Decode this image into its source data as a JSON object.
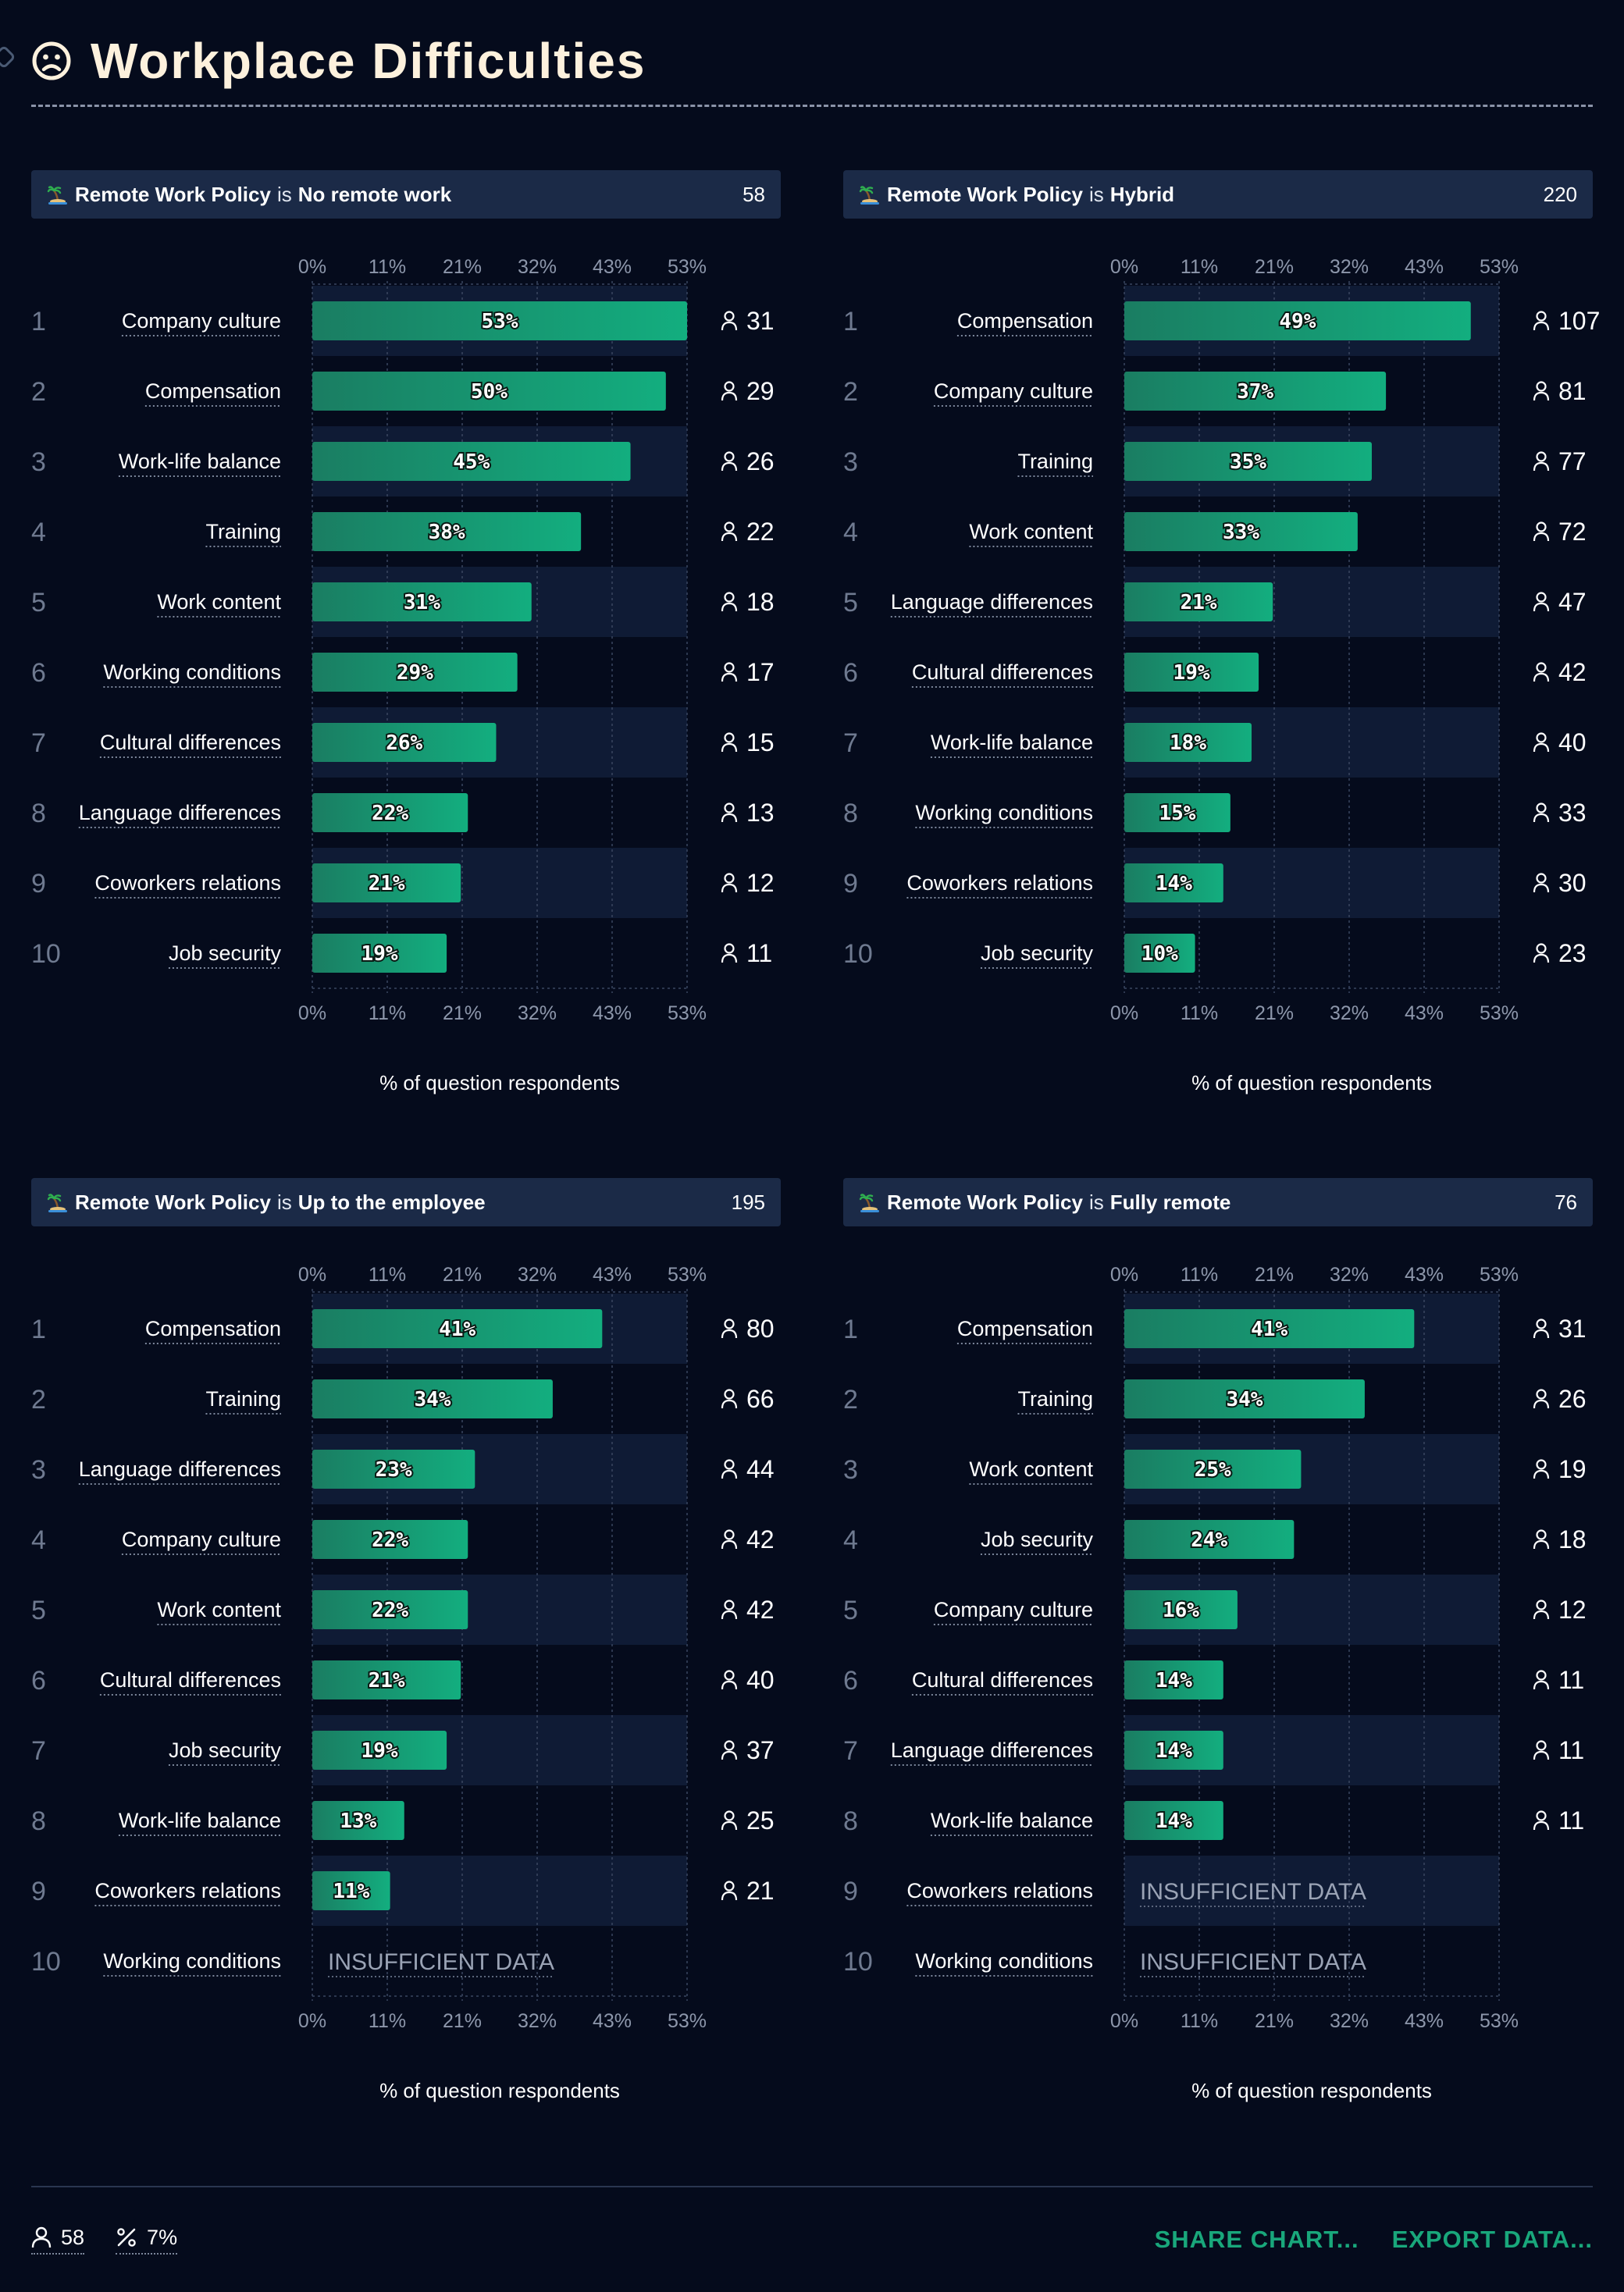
{
  "title": "Workplace Difficulties",
  "colors": {
    "background": "#050b1c",
    "header_bg": "#1b2a47",
    "band_bg": "#0f1b35",
    "bar_start": "#1a7d62",
    "bar_end": "#13ae7f",
    "accent": "#19a77b"
  },
  "axis_ticks": [
    "0%",
    "11%",
    "21%",
    "32%",
    "43%",
    "53%"
  ],
  "axis_label": "% of question respondents",
  "insufficient_label": "INSUFFICIENT DATA",
  "footer": {
    "respondents": "58",
    "percent": "7%",
    "share_label": "SHARE CHART...",
    "export_label": "EXPORT DATA..."
  },
  "chart_data": [
    {
      "type": "bar",
      "orientation": "horizontal",
      "filter_field": "Remote Work Policy",
      "filter_is": "is",
      "filter_value": "No remote work",
      "total": "58",
      "xlim": [
        0,
        53
      ],
      "xlabel": "% of question respondents",
      "rows": [
        {
          "rank": "1",
          "label": "Company culture",
          "value": 53,
          "count": "31"
        },
        {
          "rank": "2",
          "label": "Compensation",
          "value": 50,
          "count": "29"
        },
        {
          "rank": "3",
          "label": "Work-life balance",
          "value": 45,
          "count": "26"
        },
        {
          "rank": "4",
          "label": "Training",
          "value": 38,
          "count": "22"
        },
        {
          "rank": "5",
          "label": "Work content",
          "value": 31,
          "count": "18"
        },
        {
          "rank": "6",
          "label": "Working conditions",
          "value": 29,
          "count": "17"
        },
        {
          "rank": "7",
          "label": "Cultural differences",
          "value": 26,
          "count": "15"
        },
        {
          "rank": "8",
          "label": "Language differences",
          "value": 22,
          "count": "13"
        },
        {
          "rank": "9",
          "label": "Coworkers relations",
          "value": 21,
          "count": "12"
        },
        {
          "rank": "10",
          "label": "Job security",
          "value": 19,
          "count": "11"
        }
      ]
    },
    {
      "type": "bar",
      "orientation": "horizontal",
      "filter_field": "Remote Work Policy",
      "filter_is": "is",
      "filter_value": "Hybrid",
      "total": "220",
      "xlim": [
        0,
        53
      ],
      "xlabel": "% of question respondents",
      "rows": [
        {
          "rank": "1",
          "label": "Compensation",
          "value": 49,
          "count": "107"
        },
        {
          "rank": "2",
          "label": "Company culture",
          "value": 37,
          "count": "81"
        },
        {
          "rank": "3",
          "label": "Training",
          "value": 35,
          "count": "77"
        },
        {
          "rank": "4",
          "label": "Work content",
          "value": 33,
          "count": "72"
        },
        {
          "rank": "5",
          "label": "Language differences",
          "value": 21,
          "count": "47"
        },
        {
          "rank": "6",
          "label": "Cultural differences",
          "value": 19,
          "count": "42"
        },
        {
          "rank": "7",
          "label": "Work-life balance",
          "value": 18,
          "count": "40"
        },
        {
          "rank": "8",
          "label": "Working conditions",
          "value": 15,
          "count": "33"
        },
        {
          "rank": "9",
          "label": "Coworkers relations",
          "value": 14,
          "count": "30"
        },
        {
          "rank": "10",
          "label": "Job security",
          "value": 10,
          "count": "23"
        }
      ]
    },
    {
      "type": "bar",
      "orientation": "horizontal",
      "filter_field": "Remote Work Policy",
      "filter_is": "is",
      "filter_value": "Up to the employee",
      "total": "195",
      "xlim": [
        0,
        53
      ],
      "xlabel": "% of question respondents",
      "rows": [
        {
          "rank": "1",
          "label": "Compensation",
          "value": 41,
          "count": "80"
        },
        {
          "rank": "2",
          "label": "Training",
          "value": 34,
          "count": "66"
        },
        {
          "rank": "3",
          "label": "Language differences",
          "value": 23,
          "count": "44"
        },
        {
          "rank": "4",
          "label": "Company culture",
          "value": 22,
          "count": "42"
        },
        {
          "rank": "5",
          "label": "Work content",
          "value": 22,
          "count": "42"
        },
        {
          "rank": "6",
          "label": "Cultural differences",
          "value": 21,
          "count": "40"
        },
        {
          "rank": "7",
          "label": "Job security",
          "value": 19,
          "count": "37"
        },
        {
          "rank": "8",
          "label": "Work-life balance",
          "value": 13,
          "count": "25"
        },
        {
          "rank": "9",
          "label": "Coworkers relations",
          "value": 11,
          "count": "21"
        },
        {
          "rank": "10",
          "label": "Working conditions",
          "value": null,
          "count": null
        }
      ]
    },
    {
      "type": "bar",
      "orientation": "horizontal",
      "filter_field": "Remote Work Policy",
      "filter_is": "is",
      "filter_value": "Fully remote",
      "total": "76",
      "xlim": [
        0,
        53
      ],
      "xlabel": "% of question respondents",
      "rows": [
        {
          "rank": "1",
          "label": "Compensation",
          "value": 41,
          "count": "31"
        },
        {
          "rank": "2",
          "label": "Training",
          "value": 34,
          "count": "26"
        },
        {
          "rank": "3",
          "label": "Work content",
          "value": 25,
          "count": "19"
        },
        {
          "rank": "4",
          "label": "Job security",
          "value": 24,
          "count": "18"
        },
        {
          "rank": "5",
          "label": "Company culture",
          "value": 16,
          "count": "12"
        },
        {
          "rank": "6",
          "label": "Cultural differences",
          "value": 14,
          "count": "11"
        },
        {
          "rank": "7",
          "label": "Language differences",
          "value": 14,
          "count": "11"
        },
        {
          "rank": "8",
          "label": "Work-life balance",
          "value": 14,
          "count": "11"
        },
        {
          "rank": "9",
          "label": "Coworkers relations",
          "value": null,
          "count": null
        },
        {
          "rank": "10",
          "label": "Working conditions",
          "value": null,
          "count": null
        }
      ]
    }
  ]
}
